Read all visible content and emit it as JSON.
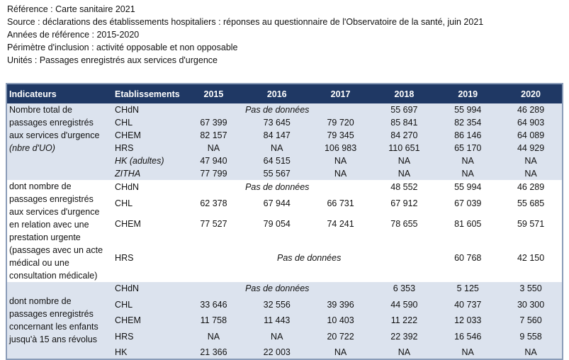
{
  "meta": {
    "reference": "Référence : Carte sanitaire 2021",
    "source": "Source : déclarations des établissements hospitaliers : réponses au questionnaire de l'Observatoire de la santé, juin 2021",
    "years": "Années de référence : 2015-2020",
    "perimeter": "Périmètre d'inclusion : activité opposable et non opposable",
    "units": "Unités : Passages enregistrés aux services d'urgence"
  },
  "headers": [
    "Indicateurs",
    "Etablissements",
    "2015",
    "2016",
    "2017",
    "2018",
    "2019",
    "2020"
  ],
  "no_data": "Pas de données",
  "sections": [
    {
      "indicator": "Nombre total de passages enregistrés aux services d'urgence",
      "indicator_note": "(nbre d'UO)",
      "rows": [
        {
          "est": "CHdN",
          "v2018": "55 697",
          "v2019": "55 994",
          "v2020": "46 289"
        },
        {
          "est": "CHL",
          "v2015": "67 399",
          "v2016": "73 645",
          "v2017": "79 720",
          "v2018": "85 841",
          "v2019": "82 354",
          "v2020": "64 903"
        },
        {
          "est": "CHEM",
          "v2015": "82 157",
          "v2016": "84 147",
          "v2017": "79 345",
          "v2018": "84 270",
          "v2019": "86 146",
          "v2020": "64 089"
        },
        {
          "est": "HRS",
          "v2015": "NA",
          "v2016": "NA",
          "v2017": "106 983",
          "v2018": "110 651",
          "v2019": "65 170",
          "v2020": "44 929"
        },
        {
          "est": "HK (adultes)",
          "v2015": "47 940",
          "v2016": "64 515",
          "v2017": "NA",
          "v2018": "NA",
          "v2019": "NA",
          "v2020": "NA"
        },
        {
          "est": "ZITHA",
          "v2015": "77 799",
          "v2016": "55 567",
          "v2017": "NA",
          "v2018": "NA",
          "v2019": "NA",
          "v2020": "NA"
        }
      ]
    },
    {
      "indicator": "dont nombre de passages enregistrés aux services d'urgence en relation avec une prestation urgente (passages avec un acte médical ou une consultation médicale)",
      "rows": [
        {
          "est": "CHdN",
          "v2018": "48 552",
          "v2019": "55 994",
          "v2020": "46 289"
        },
        {
          "est": "CHL",
          "v2015": "62 378",
          "v2016": "67 944",
          "v2017": "66 731",
          "v2018": "67 912",
          "v2019": "67 039",
          "v2020": "55 685"
        },
        {
          "est": "CHEM",
          "v2015": "77 527",
          "v2016": "79 054",
          "v2017": "74 241",
          "v2018": "78 655",
          "v2019": "81 605",
          "v2020": "59 571"
        },
        {
          "est": "HRS",
          "v2019": "60 768",
          "v2020": "42 150"
        }
      ]
    },
    {
      "indicator": "dont nombre de passages enregistrés concernant les enfants jusqu'à 15 ans révolus",
      "rows": [
        {
          "est": "CHdN",
          "v2018": "6 353",
          "v2019": "5 125",
          "v2020": "3 550"
        },
        {
          "est": "CHL",
          "v2015": "33 646",
          "v2016": "32 556",
          "v2017": "39 396",
          "v2018": "44 590",
          "v2019": "40 737",
          "v2020": "30 300"
        },
        {
          "est": "CHEM",
          "v2015": "11 758",
          "v2016": "11 443",
          "v2017": "10 403",
          "v2018": "11 222",
          "v2019": "12 033",
          "v2020": "7 560"
        },
        {
          "est": "HRS",
          "v2015": "NA",
          "v2016": "NA",
          "v2017": "20 722",
          "v2018": "22 392",
          "v2019": "16 546",
          "v2020": "9 558"
        },
        {
          "est": "HK",
          "v2015": "21 366",
          "v2016": "22 003",
          "v2017": "NA",
          "v2018": "NA",
          "v2019": "NA",
          "v2020": "NA"
        }
      ]
    }
  ]
}
